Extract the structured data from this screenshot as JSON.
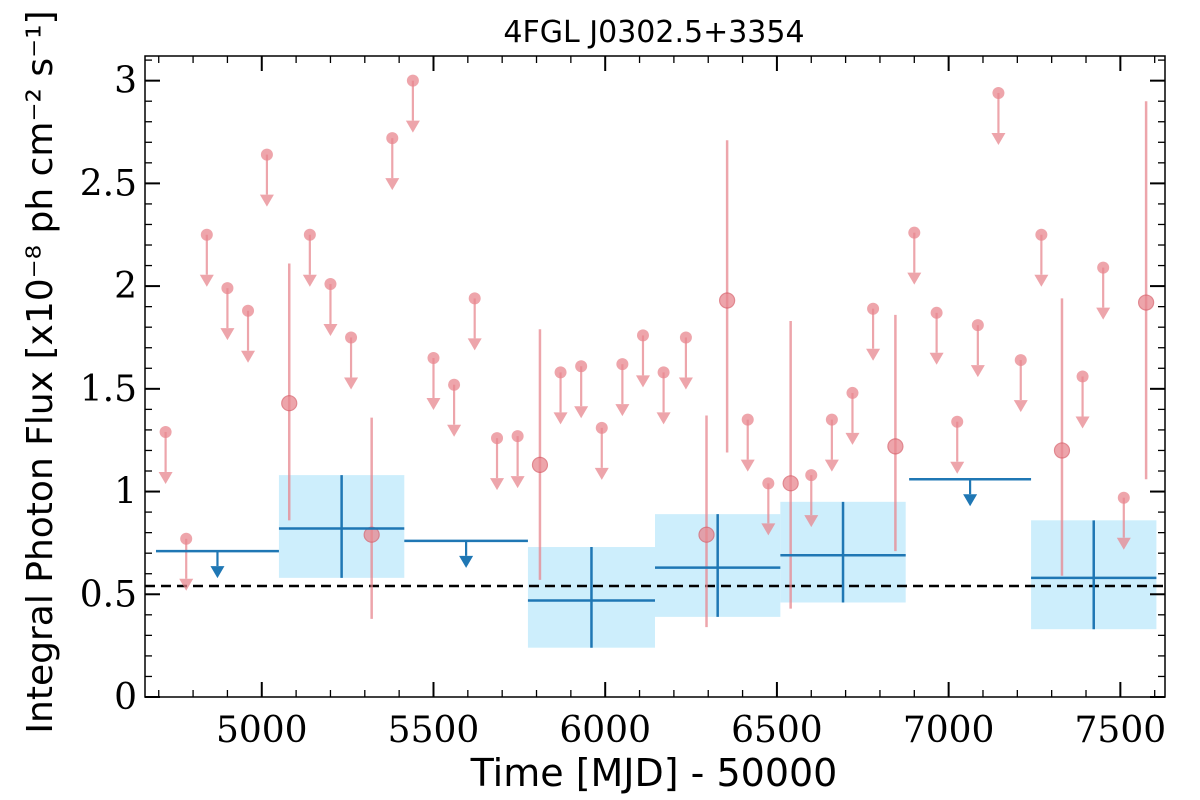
{
  "chart_data": {
    "type": "scatter",
    "title": "4FGL J0302.5+3354",
    "xlabel": "Time [MJD] - 50000",
    "ylabel": "Integral Photon Flux [x10⁻⁸ ph cm⁻² s⁻¹]",
    "xlim": [
      4660,
      7630
    ],
    "ylim": [
      0,
      3.12
    ],
    "x_ticks": [
      "5000",
      "5500",
      "6000",
      "6500",
      "7000",
      "7500"
    ],
    "x_tick_values": [
      5000,
      5500,
      6000,
      6500,
      7000,
      7500
    ],
    "y_ticks": [
      "0",
      "0.5",
      "1",
      "1.5",
      "2",
      "2.5",
      "3"
    ],
    "y_tick_values": [
      0,
      0.5,
      1,
      1.5,
      2,
      2.5,
      3
    ],
    "grid": false,
    "baseline": 0.54,
    "colors": {
      "short_bins": "#e8878f",
      "long_bins": "#1f77b4",
      "long_bins_band": "#cdeefc",
      "baseline": "#000000"
    },
    "short_bins_upper_limits": [
      {
        "x": 4720,
        "y": 1.29
      },
      {
        "x": 4780,
        "y": 0.77
      },
      {
        "x": 4840,
        "y": 2.25
      },
      {
        "x": 4900,
        "y": 1.99
      },
      {
        "x": 4960,
        "y": 1.88
      },
      {
        "x": 5015,
        "y": 2.64
      },
      {
        "x": 5140,
        "y": 2.25
      },
      {
        "x": 5200,
        "y": 2.01
      },
      {
        "x": 5260,
        "y": 1.75
      },
      {
        "x": 5380,
        "y": 2.72
      },
      {
        "x": 5440,
        "y": 3.0
      },
      {
        "x": 5500,
        "y": 1.65
      },
      {
        "x": 5560,
        "y": 1.52
      },
      {
        "x": 5620,
        "y": 1.94
      },
      {
        "x": 5685,
        "y": 1.26
      },
      {
        "x": 5745,
        "y": 1.27
      },
      {
        "x": 5870,
        "y": 1.58
      },
      {
        "x": 5930,
        "y": 1.61
      },
      {
        "x": 5990,
        "y": 1.31
      },
      {
        "x": 6050,
        "y": 1.62
      },
      {
        "x": 6110,
        "y": 1.76
      },
      {
        "x": 6170,
        "y": 1.58
      },
      {
        "x": 6235,
        "y": 1.75
      },
      {
        "x": 6415,
        "y": 1.35
      },
      {
        "x": 6475,
        "y": 1.04
      },
      {
        "x": 6600,
        "y": 1.08
      },
      {
        "x": 6660,
        "y": 1.35
      },
      {
        "x": 6720,
        "y": 1.48
      },
      {
        "x": 6780,
        "y": 1.89
      },
      {
        "x": 6900,
        "y": 2.26
      },
      {
        "x": 6965,
        "y": 1.87
      },
      {
        "x": 7025,
        "y": 1.34
      },
      {
        "x": 7085,
        "y": 1.81
      },
      {
        "x": 7145,
        "y": 2.94
      },
      {
        "x": 7210,
        "y": 1.64
      },
      {
        "x": 7270,
        "y": 2.25
      },
      {
        "x": 7390,
        "y": 1.56
      },
      {
        "x": 7450,
        "y": 2.09
      },
      {
        "x": 7510,
        "y": 0.97
      }
    ],
    "short_bins_detections": [
      {
        "x": 5080,
        "y": 1.43,
        "ylo": 0.86,
        "yhi": 2.11
      },
      {
        "x": 5320,
        "y": 0.79,
        "ylo": 0.38,
        "yhi": 1.36
      },
      {
        "x": 5810,
        "y": 1.13,
        "ylo": 0.57,
        "yhi": 1.79
      },
      {
        "x": 6295,
        "y": 0.79,
        "ylo": 0.34,
        "yhi": 1.37
      },
      {
        "x": 6355,
        "y": 1.93,
        "ylo": 1.19,
        "yhi": 2.71
      },
      {
        "x": 6540,
        "y": 1.04,
        "ylo": 0.43,
        "yhi": 1.83
      },
      {
        "x": 6845,
        "y": 1.22,
        "ylo": 0.71,
        "yhi": 1.86
      },
      {
        "x": 7330,
        "y": 1.2,
        "ylo": 0.59,
        "yhi": 1.94
      },
      {
        "x": 7575,
        "y": 1.92,
        "ylo": 1.06,
        "yhi": 2.9
      }
    ],
    "long_bins_upper_limits": [
      {
        "xlo": 4692,
        "xhi": 5050,
        "y": 0.71
      },
      {
        "xlo": 5415,
        "xhi": 5775,
        "y": 0.76
      },
      {
        "xlo": 6885,
        "xhi": 7240,
        "y": 1.06
      }
    ],
    "long_bins_detections": [
      {
        "xlo": 5050,
        "xhi": 5415,
        "y": 0.82,
        "ylo": 0.58,
        "yhi": 1.08
      },
      {
        "xlo": 5775,
        "xhi": 6145,
        "y": 0.47,
        "ylo": 0.24,
        "yhi": 0.73
      },
      {
        "xlo": 6145,
        "xhi": 6510,
        "y": 0.63,
        "ylo": 0.39,
        "yhi": 0.89
      },
      {
        "xlo": 6510,
        "xhi": 6875,
        "y": 0.69,
        "ylo": 0.46,
        "yhi": 0.95
      },
      {
        "xlo": 7240,
        "xhi": 7605,
        "y": 0.58,
        "ylo": 0.33,
        "yhi": 0.86
      }
    ]
  }
}
